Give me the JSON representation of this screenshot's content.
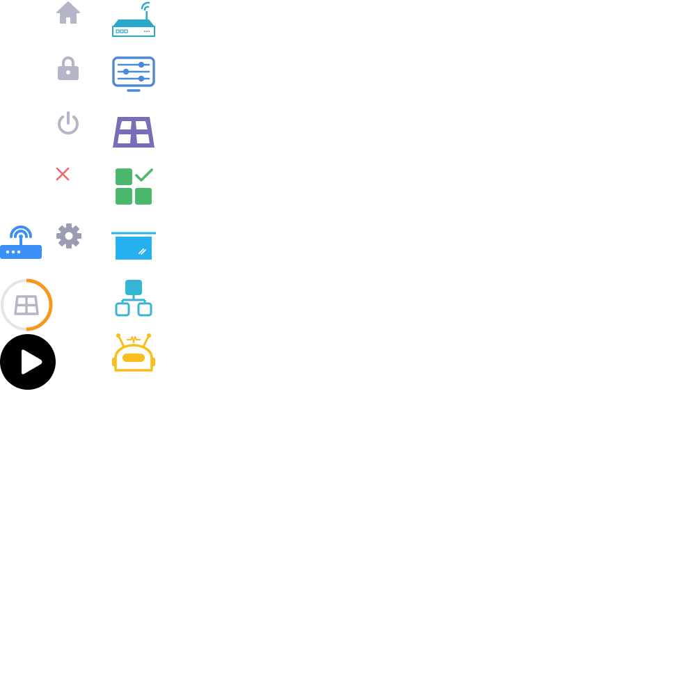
{
  "colors": {
    "gray": "#b4b5c6",
    "gear_gray": "#9a9cb0",
    "red": "#ef6a6a",
    "router_blue": "#3d8ff8",
    "orange": "#f7981c",
    "ring_track": "#e5e5e8",
    "black": "#000000",
    "teal": "#2ca8c8",
    "steel_blue": "#4a8ad8",
    "purple": "#7b6bb8",
    "green": "#4cb86e",
    "sky": "#26b0f0",
    "cyan": "#36b4d4",
    "yellow": "#f9bd1e"
  },
  "progress": {
    "fraction": 0.5
  },
  "icons": [
    {
      "name": "home-icon",
      "interactable": true
    },
    {
      "name": "lock-icon",
      "interactable": true
    },
    {
      "name": "power-icon",
      "interactable": true
    },
    {
      "name": "close-icon",
      "interactable": true
    },
    {
      "name": "gear-icon",
      "interactable": true
    },
    {
      "name": "wifi-router-icon",
      "interactable": true
    },
    {
      "name": "progress-ring-icon",
      "interactable": false
    },
    {
      "name": "play-button-icon",
      "interactable": true
    },
    {
      "name": "network-switch-icon",
      "interactable": true
    },
    {
      "name": "monitor-settings-icon",
      "interactable": true
    },
    {
      "name": "window-grid-icon",
      "interactable": true
    },
    {
      "name": "apps-check-icon",
      "interactable": true
    },
    {
      "name": "projector-screen-icon",
      "interactable": true
    },
    {
      "name": "hierarchy-icon",
      "interactable": true
    },
    {
      "name": "robot-icon",
      "interactable": true
    }
  ]
}
